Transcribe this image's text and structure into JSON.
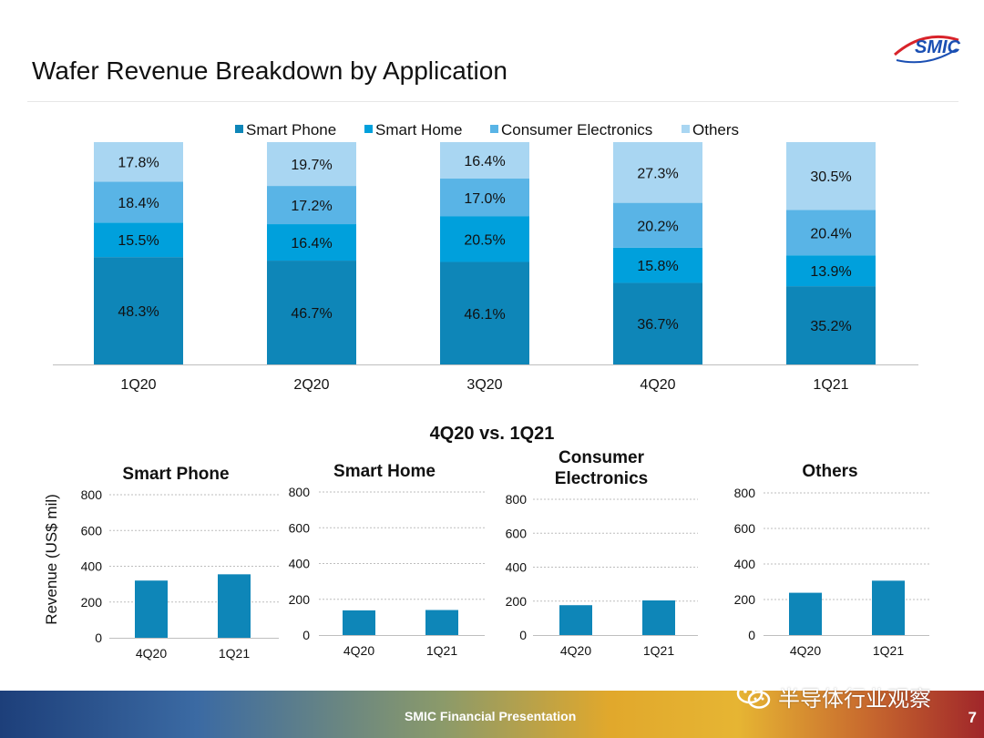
{
  "page": {
    "title": "Wafer Revenue Breakdown by Application",
    "logo_text": "SMIC",
    "section_title": "4Q20 vs. 1Q21",
    "footer_label": "SMIC Financial Presentation",
    "page_number": "7",
    "watermark_text": "半导体行业观察"
  },
  "colors": {
    "smart_phone": "#0e86b8",
    "smart_home": "#00a0dc",
    "consumer_electronics": "#59b4e6",
    "others": "#a9d6f2",
    "small_bar": "#0e86b8"
  },
  "chart_data": [
    {
      "type": "bar",
      "stacked": true,
      "normalized_percent": true,
      "categories": [
        "1Q20",
        "2Q20",
        "3Q20",
        "4Q20",
        "1Q21"
      ],
      "legend_position": "top",
      "series": [
        {
          "name": "Smart Phone",
          "values": [
            48.3,
            46.7,
            46.1,
            36.7,
            35.2
          ],
          "labels": [
            "48.3%",
            "46.7%",
            "46.1%",
            "36.7%",
            "35.2%"
          ]
        },
        {
          "name": "Smart Home",
          "values": [
            15.5,
            16.4,
            20.5,
            15.8,
            13.9
          ],
          "labels": [
            "15.5%",
            "16.4%",
            "20.5%",
            "15.8%",
            "13.9%"
          ]
        },
        {
          "name": "Consumer Electronics",
          "values": [
            18.4,
            17.2,
            17.0,
            20.2,
            20.4
          ],
          "labels": [
            "18.4%",
            "17.2%",
            "17.0%",
            "20.2%",
            "20.4%"
          ]
        },
        {
          "name": "Others",
          "values": [
            17.8,
            19.7,
            16.4,
            27.3,
            30.5
          ],
          "labels": [
            "17.8%",
            "19.7%",
            "16.4%",
            "27.3%",
            "30.5%"
          ]
        }
      ]
    },
    {
      "type": "bar",
      "title": "Smart Phone",
      "ylabel": "Revenue (US$  mil)",
      "categories": [
        "4Q20",
        "1Q21"
      ],
      "values": [
        320,
        355
      ],
      "ylim": [
        0,
        800
      ],
      "yticks": [
        "0",
        "200",
        "400",
        "600",
        "800"
      ],
      "grid": true
    },
    {
      "type": "bar",
      "title": "Smart Home",
      "categories": [
        "4Q20",
        "1Q21"
      ],
      "values": [
        138,
        140
      ],
      "ylim": [
        0,
        800
      ],
      "yticks": [
        "0",
        "200",
        "400",
        "600",
        "800"
      ],
      "grid": true
    },
    {
      "type": "bar",
      "title": "Consumer Electronics",
      "title_lines": [
        "Consumer",
        "Electronics"
      ],
      "categories": [
        "4Q20",
        "1Q21"
      ],
      "values": [
        176,
        204
      ],
      "ylim": [
        0,
        800
      ],
      "yticks": [
        "0",
        "200",
        "400",
        "600",
        "800"
      ],
      "grid": true
    },
    {
      "type": "bar",
      "title": "Others",
      "categories": [
        "4Q20",
        "1Q21"
      ],
      "values": [
        238,
        306
      ],
      "ylim": [
        0,
        800
      ],
      "yticks": [
        "0",
        "200",
        "400",
        "600",
        "800"
      ],
      "grid": true
    }
  ]
}
